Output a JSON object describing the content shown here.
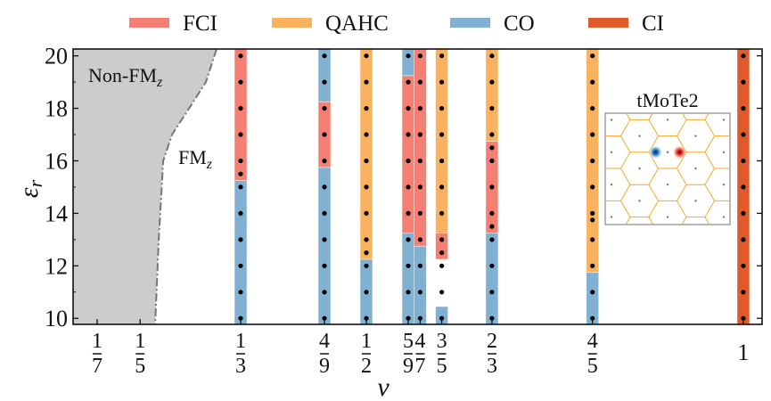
{
  "legend": [
    {
      "key": "FCI",
      "label": "FCI",
      "color": "#F47F72"
    },
    {
      "key": "QAHC",
      "label": "QAHC",
      "color": "#FBB25F"
    },
    {
      "key": "CO",
      "label": "CO",
      "color": "#80B1D3"
    },
    {
      "key": "CI",
      "label": "CI",
      "color": "#E05B2C"
    }
  ],
  "regions": {
    "non_fm": {
      "label": "Non-FM",
      "subscript": "z",
      "fill": "#CCCCCC",
      "boundary_color": "#777777"
    },
    "fm": {
      "label": "FM",
      "subscript": "z"
    }
  },
  "inset": {
    "title": "tMoTe2"
  },
  "axes": {
    "xlabel": "ν",
    "ylabel": "ε",
    "ylabel_sub": "r"
  },
  "chart_data": {
    "type": "phase-diagram (segmented bar/strip chart)",
    "title": "",
    "xlabel": "ν",
    "ylabel": "ε_r",
    "xlim": [
      0.111,
      1.025
    ],
    "ylim": [
      9.77,
      20.26
    ],
    "grid": false,
    "legend_position": "top, outside plot",
    "y_ticks": [
      10,
      12,
      14,
      16,
      18,
      20
    ],
    "x_ticks": [
      {
        "value": 0.142857,
        "num": "1",
        "den": "7"
      },
      {
        "value": 0.2,
        "num": "1",
        "den": "5"
      },
      {
        "value": 0.333333,
        "num": "1",
        "den": "3"
      },
      {
        "value": 0.444444,
        "num": "4",
        "den": "9"
      },
      {
        "value": 0.5,
        "num": "1",
        "den": "2"
      },
      {
        "value": 0.555556,
        "num": "5",
        "den": "9"
      },
      {
        "value": 0.571429,
        "num": "4",
        "den": "7"
      },
      {
        "value": 0.6,
        "num": "3",
        "den": "5"
      },
      {
        "value": 0.666667,
        "num": "2",
        "den": "3"
      },
      {
        "value": 0.8,
        "num": "4",
        "den": "5"
      },
      {
        "value": 1.0,
        "num": "1",
        "den": ""
      }
    ],
    "non_fm_boundary": [
      {
        "nu": 0.3014,
        "eps": 20.26
      },
      {
        "nu": 0.2872,
        "eps": 19.0
      },
      {
        "nu": 0.2648,
        "eps": 18.0
      },
      {
        "nu": 0.2423,
        "eps": 17.0
      },
      {
        "nu": 0.2305,
        "eps": 16.0
      },
      {
        "nu": 0.2246,
        "eps": 13.0
      },
      {
        "nu": 0.2199,
        "eps": 9.77
      }
    ],
    "columns": [
      {
        "nu_label": "1/3",
        "nu": 0.333333,
        "segments": [
          {
            "phase": "CO",
            "from": 9.77,
            "to": 15.25
          },
          {
            "phase": "FCI",
            "from": 15.25,
            "to": 20.26
          }
        ],
        "points": [
          10,
          11,
          12,
          13,
          14,
          15,
          15.5,
          16,
          17,
          18,
          19,
          20
        ]
      },
      {
        "nu_label": "4/9",
        "nu": 0.444444,
        "segments": [
          {
            "phase": "CO",
            "from": 9.77,
            "to": 15.75
          },
          {
            "phase": "FCI",
            "from": 15.75,
            "to": 18.25
          },
          {
            "phase": "CO",
            "from": 18.25,
            "to": 20.26
          }
        ],
        "points": [
          10,
          11,
          12,
          13,
          14,
          15,
          16,
          17,
          18,
          19,
          20
        ]
      },
      {
        "nu_label": "1/2",
        "nu": 0.5,
        "segments": [
          {
            "phase": "CO",
            "from": 9.77,
            "to": 12.25
          },
          {
            "phase": "QAHC",
            "from": 12.25,
            "to": 20.26
          }
        ],
        "points": [
          10,
          11,
          12,
          12.5,
          13,
          14,
          15,
          16,
          17,
          18,
          19,
          20
        ]
      },
      {
        "nu_label": "5/9",
        "nu": 0.555556,
        "segments": [
          {
            "phase": "CO",
            "from": 9.77,
            "to": 13.25
          },
          {
            "phase": "FCI",
            "from": 13.25,
            "to": 19.25
          },
          {
            "phase": "CO",
            "from": 19.25,
            "to": 20.26
          }
        ],
        "points": [
          10,
          11,
          12,
          13,
          14,
          15,
          16,
          17,
          18,
          19,
          20
        ]
      },
      {
        "nu_label": "4/7",
        "nu": 0.571429,
        "segments": [
          {
            "phase": "CO",
            "from": 9.77,
            "to": 12.75
          },
          {
            "phase": "FCI",
            "from": 12.75,
            "to": 20.26
          }
        ],
        "points": [
          10,
          11,
          12,
          13,
          14,
          15,
          16,
          17,
          18,
          19,
          20
        ]
      },
      {
        "nu_label": "3/5",
        "nu": 0.6,
        "segments": [
          {
            "phase": "CO",
            "from": 9.77,
            "to": 10.45
          },
          {
            "phase": "FCI",
            "from": 12.25,
            "to": 13.25
          },
          {
            "phase": "QAHC",
            "from": 13.25,
            "to": 20.26
          }
        ],
        "points": [
          10,
          11,
          12,
          12.5,
          13,
          14,
          15,
          16,
          17,
          18,
          19,
          20
        ]
      },
      {
        "nu_label": "2/3",
        "nu": 0.666667,
        "segments": [
          {
            "phase": "CO",
            "from": 9.77,
            "to": 13.25
          },
          {
            "phase": "FCI",
            "from": 13.25,
            "to": 16.75
          },
          {
            "phase": "QAHC",
            "from": 16.75,
            "to": 20.26
          }
        ],
        "points": [
          10,
          11,
          12,
          13,
          13.5,
          14,
          15,
          16,
          16.5,
          17,
          18,
          19,
          20
        ]
      },
      {
        "nu_label": "4/5",
        "nu": 0.8,
        "segments": [
          {
            "phase": "CO",
            "from": 9.77,
            "to": 11.75
          },
          {
            "phase": "QAHC",
            "from": 11.75,
            "to": 20.26
          }
        ],
        "points": [
          10,
          11,
          12,
          13,
          13.75,
          14,
          15,
          16,
          17,
          18,
          19,
          20
        ]
      },
      {
        "nu_label": "1",
        "nu": 1.0,
        "segments": [
          {
            "phase": "CI",
            "from": 9.77,
            "to": 20.26
          }
        ],
        "points": [
          10,
          11,
          12,
          13,
          14,
          15,
          16,
          17,
          18,
          19,
          20
        ]
      }
    ]
  }
}
